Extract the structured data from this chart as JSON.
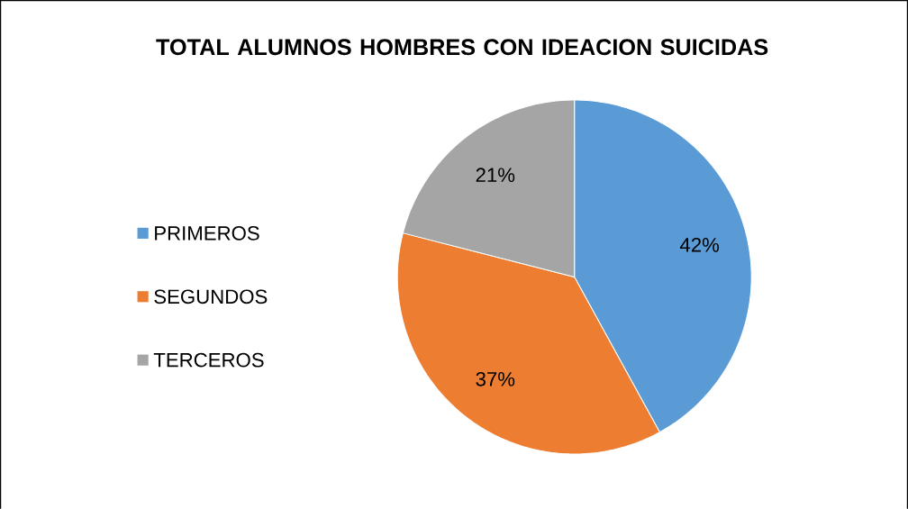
{
  "chart_data": {
    "type": "pie",
    "title": "TOTAL ALUMNOS HOMBRES CON IDEACION SUICIDAS",
    "categories": [
      "PRIMEROS",
      "SEGUNDOS",
      "TERCEROS"
    ],
    "values": [
      42,
      37,
      21
    ],
    "colors": [
      "#5b9bd5",
      "#ed7d31",
      "#a5a5a5"
    ],
    "value_labels": [
      "42%",
      "37%",
      "21%"
    ],
    "legend": "left"
  }
}
